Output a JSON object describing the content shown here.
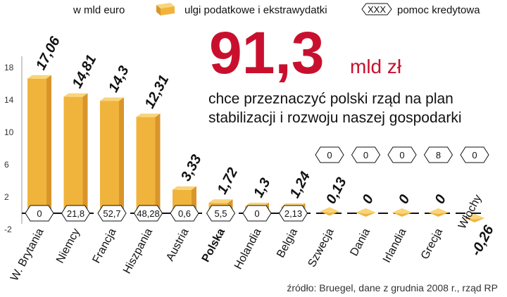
{
  "chart_data": {
    "type": "bar",
    "unit_label": "w mld euro",
    "series": [
      {
        "name": "ulgi podatkowe i ekstrawydatki",
        "values": [
          17.06,
          14.81,
          14.3,
          12.31,
          3.33,
          1.72,
          1.3,
          1.24,
          0.13,
          0,
          0,
          0,
          -0.26
        ]
      },
      {
        "name": "pomoc kredytowa",
        "values": [
          "0",
          "21,8",
          "52,7",
          "48,28",
          "0,6",
          "5,5",
          "0",
          "2,13",
          "0",
          "0",
          "0",
          "8",
          "0"
        ]
      }
    ],
    "categories": [
      "W. Brytania",
      "Niemcy",
      "Francja",
      "Hiszpania",
      "Austria",
      "Polska",
      "Holandia",
      "Belgia",
      "Szwecja",
      "Dania",
      "Irlandia",
      "Grecja",
      "Włochy"
    ],
    "value_labels": [
      "17,06",
      "14,81",
      "14,3",
      "12,31",
      "3,33",
      "1,72",
      "1,3",
      "1,24",
      "0,13",
      "0",
      "0",
      "0",
      "-0,26"
    ],
    "highlight_category": "Polska",
    "yticks": [
      -2,
      2,
      6,
      10,
      14,
      18
    ],
    "ytick_labels": [
      "-2",
      "2",
      "6",
      "10",
      "14",
      "18"
    ],
    "ylim": [
      -2,
      20
    ],
    "grid": false,
    "legend_position": "top",
    "colors": {
      "bar_front": "#f0b43c",
      "bar_side": "#d9952a",
      "bar_top": "#f9d47a",
      "accent": "#c8102e"
    }
  },
  "headline": {
    "big_number": "91,3",
    "big_unit": "mld zł",
    "line1": "chce przeznaczyć polski rząd na plan",
    "line2": "stabilizacji i rozwoju naszej gospodarki"
  },
  "legend": {
    "unit": "w mld euro",
    "bar_label": "ulgi podatkowe i ekstrawydatki",
    "credit_icon_text": "XXX",
    "credit_label": "pomoc kredytowa"
  },
  "source": "źródło: Bruegel, dane z grudnia 2008 r., rząd RP"
}
